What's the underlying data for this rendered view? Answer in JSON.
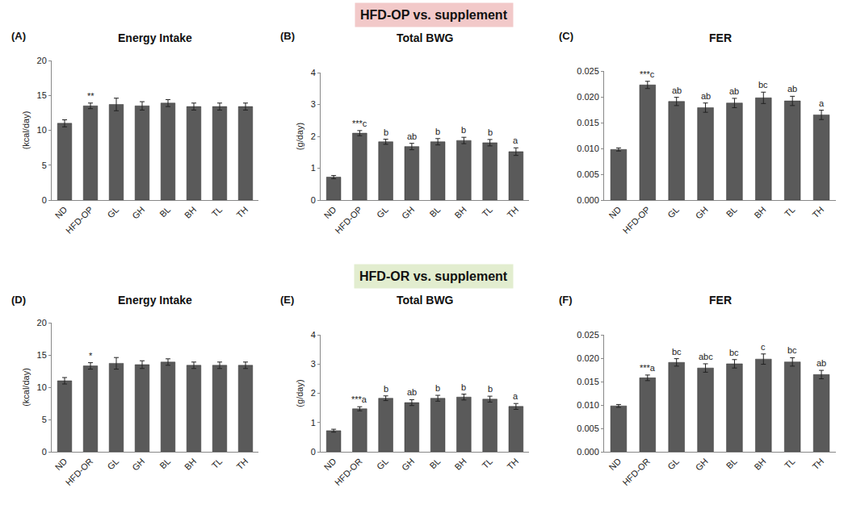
{
  "headers": [
    "HFD-OP vs. supplement",
    "HFD-OR vs. supplement"
  ],
  "chart_data": [
    {
      "type": "bar",
      "label": "(A)",
      "title": "Energy Intake",
      "y_label": "(kcal/day)",
      "color": "#5a5a5a",
      "categories": [
        "ND",
        "HFD-OP",
        "GL",
        "GH",
        "BL",
        "BH",
        "TL",
        "TH"
      ],
      "values": [
        11.0,
        13.5,
        13.7,
        13.5,
        13.9,
        13.4,
        13.4,
        13.4
      ],
      "errors": [
        0.5,
        0.4,
        0.9,
        0.6,
        0.5,
        0.5,
        0.5,
        0.5
      ],
      "annotations": [
        null,
        "**",
        null,
        null,
        null,
        null,
        null,
        null
      ],
      "ylim": [
        0,
        20
      ],
      "yticks": [
        0,
        5,
        10,
        15,
        20
      ],
      "grid": false
    },
    {
      "type": "bar",
      "label": "(B)",
      "title": "Total BWG",
      "y_label": "(g/day)",
      "color": "#5a5a5a",
      "categories": [
        "ND",
        "HFD-OP",
        "GL",
        "GH",
        "BL",
        "BH",
        "TL",
        "TH"
      ],
      "values": [
        0.72,
        2.1,
        1.83,
        1.68,
        1.83,
        1.87,
        1.8,
        1.52
      ],
      "errors": [
        0.05,
        0.08,
        0.08,
        0.1,
        0.1,
        0.1,
        0.1,
        0.12
      ],
      "annotations": [
        null,
        "***c",
        "b",
        "ab",
        "b",
        "b",
        "b",
        "a"
      ],
      "ylim": [
        0,
        4
      ],
      "yticks": [
        0,
        1,
        2,
        3,
        4
      ],
      "grid": false
    },
    {
      "type": "bar",
      "label": "(C)",
      "title": "FER",
      "color": "#5a5a5a",
      "categories": [
        "ND",
        "HFD-OP",
        "GL",
        "GH",
        "BL",
        "BH",
        "TL",
        "TH"
      ],
      "values": [
        0.0098,
        0.0223,
        0.0191,
        0.0179,
        0.0188,
        0.0198,
        0.0192,
        0.0165
      ],
      "errors": [
        0.0003,
        0.0007,
        0.0008,
        0.0009,
        0.0009,
        0.0011,
        0.0009,
        0.0009
      ],
      "annotations": [
        null,
        "***c",
        "ab",
        "ab",
        "ab",
        "bc",
        "ab",
        "a"
      ],
      "ylim": [
        0,
        0.025
      ],
      "yticks": [
        {
          "value": 0,
          "label": "0.000"
        },
        {
          "value": 0.005,
          "label": "0.005"
        },
        {
          "value": 0.01,
          "label": "0.010"
        },
        {
          "value": 0.015,
          "label": "0.015"
        },
        {
          "value": 0.02,
          "label": "0.020"
        },
        {
          "value": 0.025,
          "label": "0.025"
        }
      ],
      "grid": false
    },
    {
      "type": "bar",
      "label": "(D)",
      "title": "Energy Intake",
      "y_label": "(kcal/day)",
      "color": "#5a5a5a",
      "categories": [
        "ND",
        "HFD-OR",
        "GL",
        "GH",
        "BL",
        "BH",
        "TL",
        "TH"
      ],
      "values": [
        11.0,
        13.3,
        13.7,
        13.5,
        13.9,
        13.4,
        13.4,
        13.4
      ],
      "errors": [
        0.5,
        0.5,
        0.9,
        0.6,
        0.5,
        0.5,
        0.5,
        0.5
      ],
      "annotations": [
        null,
        "*",
        null,
        null,
        null,
        null,
        null,
        null
      ],
      "ylim": [
        0,
        20
      ],
      "yticks": [
        0,
        5,
        10,
        15,
        20
      ],
      "grid": false
    },
    {
      "type": "bar",
      "label": "(E)",
      "title": "Total BWG",
      "y_label": "(g/day)",
      "color": "#5a5a5a",
      "categories": [
        "ND",
        "HFD-OR",
        "GL",
        "GH",
        "BL",
        "BH",
        "TL",
        "TH"
      ],
      "values": [
        0.72,
        1.47,
        1.83,
        1.68,
        1.83,
        1.87,
        1.8,
        1.55
      ],
      "errors": [
        0.05,
        0.07,
        0.08,
        0.1,
        0.1,
        0.1,
        0.1,
        0.1
      ],
      "annotations": [
        null,
        "***a",
        "b",
        "ab",
        "b",
        "b",
        "b",
        "a"
      ],
      "ylim": [
        0,
        4
      ],
      "yticks": [
        0,
        1,
        2,
        3,
        4
      ],
      "grid": false
    },
    {
      "type": "bar",
      "label": "(F)",
      "title": "FER",
      "color": "#5a5a5a",
      "categories": [
        "ND",
        "HFD-OR",
        "GL",
        "GH",
        "BL",
        "BH",
        "TL",
        "TH"
      ],
      "values": [
        0.0098,
        0.0158,
        0.0191,
        0.0179,
        0.0188,
        0.0198,
        0.0192,
        0.0165
      ],
      "errors": [
        0.0003,
        0.0006,
        0.0008,
        0.0009,
        0.0009,
        0.0011,
        0.0009,
        0.0009
      ],
      "annotations": [
        null,
        "***a",
        "bc",
        "abc",
        "bc",
        "c",
        "bc",
        "ab"
      ],
      "ylim": [
        0,
        0.025
      ],
      "yticks": [
        {
          "value": 0,
          "label": "0.000"
        },
        {
          "value": 0.005,
          "label": "0.005"
        },
        {
          "value": 0.01,
          "label": "0.010"
        },
        {
          "value": 0.015,
          "label": "0.015"
        },
        {
          "value": 0.02,
          "label": "0.020"
        },
        {
          "value": 0.025,
          "label": "0.025"
        }
      ],
      "grid": false
    }
  ]
}
